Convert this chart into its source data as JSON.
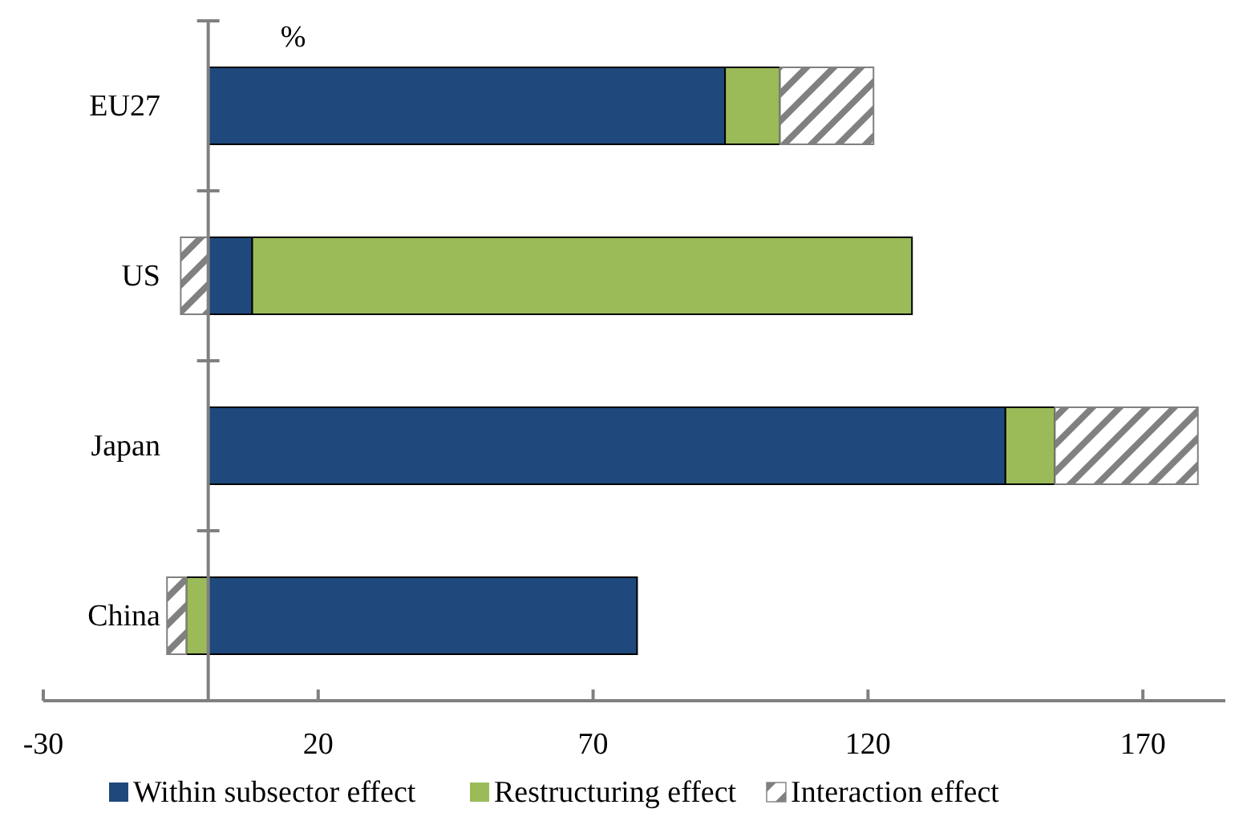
{
  "chart_data": {
    "type": "bar",
    "orientation": "horizontal",
    "stacked": true,
    "ylabel": "%",
    "categories": [
      "EU27",
      "US",
      "Japan",
      "China"
    ],
    "series": [
      {
        "name": "Within subsector effect",
        "color": "#1f497d",
        "values": [
          94,
          8,
          145,
          78
        ]
      },
      {
        "name": "Restructuring effect",
        "color": "#9bbb59",
        "values": [
          10,
          120,
          9,
          -4
        ]
      },
      {
        "name": "Interaction effect",
        "color": "#808080",
        "values": [
          17,
          -5,
          26,
          -3.5
        ]
      }
    ],
    "xlim": [
      -30,
      185
    ],
    "xticks": [
      -30,
      20,
      70,
      120,
      170
    ],
    "grid": false,
    "legend": "bottom"
  }
}
